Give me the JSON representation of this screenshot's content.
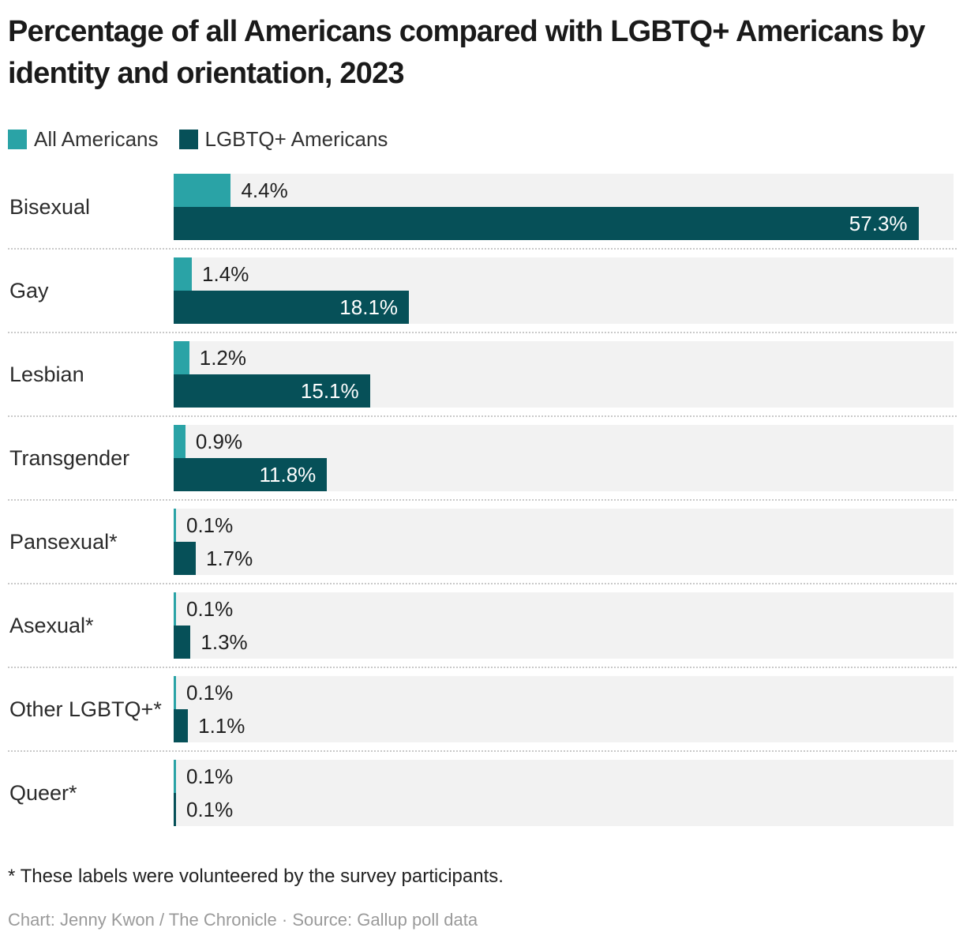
{
  "title": "Percentage of all Americans compared with LGBTQ+ Americans by identity and orientation, 2023",
  "legend": {
    "items": [
      {
        "label": "All Americans",
        "color": "#2aa3a6"
      },
      {
        "label": "LGBTQ+ Americans",
        "color": "#065058"
      }
    ]
  },
  "chart_data": {
    "type": "bar",
    "orientation": "horizontal",
    "title": "Percentage of all Americans compared with LGBTQ+ Americans by identity and orientation, 2023",
    "categories": [
      "Bisexual",
      "Gay",
      "Lesbian",
      "Transgender",
      "Pansexual*",
      "Asexual*",
      "Other LGBTQ+*",
      "Queer*"
    ],
    "series": [
      {
        "name": "All Americans",
        "color": "#2aa3a6",
        "values": [
          4.4,
          1.4,
          1.2,
          0.9,
          0.1,
          0.1,
          0.1,
          0.1
        ],
        "labels": [
          "4.4%",
          "1.4%",
          "1.2%",
          "0.9%",
          "0.1%",
          "0.1%",
          "0.1%",
          "0.1%"
        ]
      },
      {
        "name": "LGBTQ+ Americans",
        "color": "#065058",
        "values": [
          57.3,
          18.1,
          15.1,
          11.8,
          1.7,
          1.3,
          1.1,
          0.1
        ],
        "labels": [
          "57.3%",
          "18.1%",
          "15.1%",
          "11.8%",
          "1.7%",
          "1.3%",
          "1.1%",
          "0.1%"
        ]
      }
    ],
    "xlim": [
      0,
      60
    ],
    "grid": false,
    "legend_position": "top",
    "row_background": "#f2f2f2",
    "value_label_inside_threshold": 5
  },
  "footnote": "* These labels were volunteered by the survey participants.",
  "credit": "Chart: Jenny Kwon / The Chronicle · Source: Gallup poll data"
}
